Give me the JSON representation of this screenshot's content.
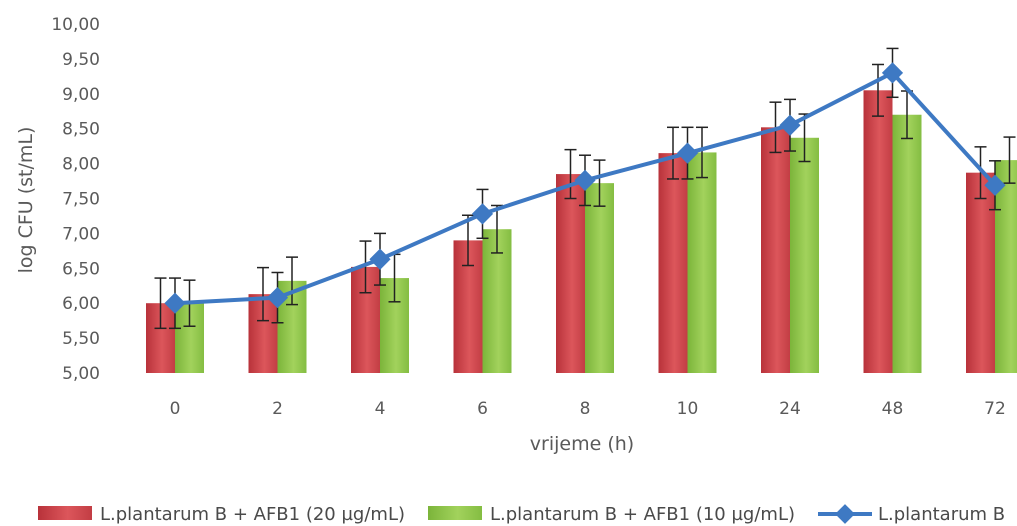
{
  "chart_data": {
    "type": "bar",
    "title": "",
    "xlabel": "vrijeme (h)",
    "ylabel": "log CFU (st/mL)",
    "ylim": [
      5.0,
      10.0
    ],
    "yticks": [
      "5,00",
      "5,50",
      "6,00",
      "6,50",
      "7,00",
      "7,50",
      "8,00",
      "8,50",
      "9,00",
      "9,50",
      "10,00"
    ],
    "categories": [
      "0",
      "2",
      "4",
      "6",
      "8",
      "10",
      "24",
      "48",
      "72"
    ],
    "grid": false,
    "legend_position": "bottom",
    "series": [
      {
        "name": "L.plantarum B + AFB1 (20 µg/mL)",
        "kind": "bar",
        "color": "#d2484e",
        "values": [
          6.0,
          6.13,
          6.52,
          6.9,
          7.85,
          8.15,
          8.52,
          9.05,
          7.87
        ],
        "errors": [
          0.36,
          0.38,
          0.37,
          0.36,
          0.35,
          0.37,
          0.36,
          0.37,
          0.37
        ]
      },
      {
        "name": "L.plantarum B + AFB1 (10 µg/mL)",
        "kind": "bar",
        "color": "#8fc44a",
        "values": [
          6.0,
          6.32,
          6.36,
          7.06,
          7.72,
          8.16,
          8.37,
          8.7,
          8.05
        ],
        "errors": [
          0.33,
          0.34,
          0.34,
          0.34,
          0.33,
          0.36,
          0.34,
          0.34,
          0.33
        ]
      },
      {
        "name": "L.plantarum B",
        "kind": "line",
        "color": "#3e79c3",
        "values": [
          6.0,
          6.08,
          6.63,
          7.28,
          7.76,
          8.15,
          8.55,
          9.3,
          7.69
        ],
        "errors": [
          0.36,
          0.36,
          0.37,
          0.35,
          0.36,
          0.37,
          0.37,
          0.35,
          0.35
        ]
      }
    ]
  }
}
